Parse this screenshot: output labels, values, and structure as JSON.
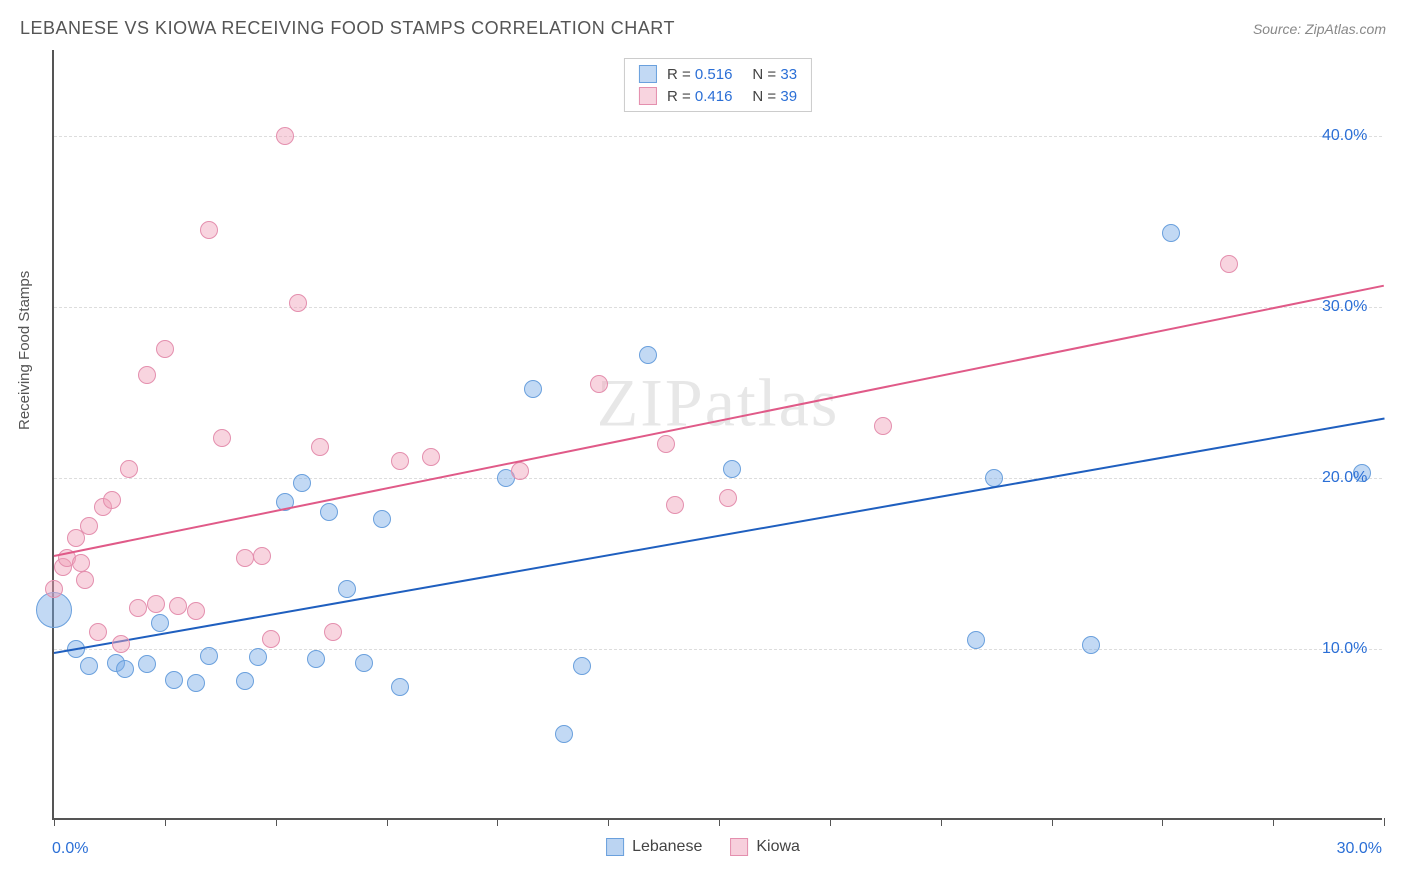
{
  "header": {
    "title": "LEBANESE VS KIOWA RECEIVING FOOD STAMPS CORRELATION CHART",
    "source": "Source: ZipAtlas.com"
  },
  "watermark": "ZIPatlas",
  "chart": {
    "type": "scatter",
    "background_color": "#ffffff",
    "grid_color": "#dddddd",
    "axis_color": "#555555",
    "ylabel": "Receiving Food Stamps",
    "ylabel_fontsize": 15,
    "ylabel_color": "#555555",
    "xlim": [
      0,
      30
    ],
    "ylim": [
      0,
      45
    ],
    "xtick_positions": [
      0,
      2.5,
      5,
      7.5,
      10,
      12.5,
      15,
      17.5,
      20,
      22.5,
      25,
      27.5,
      30
    ],
    "xtick_labels": [
      {
        "pos": 0,
        "text": "0.0%",
        "align": "left"
      },
      {
        "pos": 30,
        "text": "30.0%",
        "align": "right"
      }
    ],
    "xtick_color": "#2b6fd6",
    "yticks": [
      10,
      20,
      30,
      40
    ],
    "ytick_labels": [
      "10.0%",
      "20.0%",
      "30.0%",
      "40.0%"
    ],
    "ytick_color": "#2b6fd6",
    "series": [
      {
        "name": "Lebanese",
        "fill_color": "rgba(120,170,230,0.45)",
        "stroke_color": "#6aa0dd",
        "marker_radius": 9,
        "trend_color": "#1f5fbf",
        "trend_width": 2,
        "trend_start": {
          "x": 0,
          "y": 9.8
        },
        "trend_end": {
          "x": 30,
          "y": 23.5
        },
        "R": "0.516",
        "N": "33",
        "points": [
          {
            "x": 0.0,
            "y": 12.3,
            "r": 18
          },
          {
            "x": 0.5,
            "y": 10.0
          },
          {
            "x": 0.8,
            "y": 9.0
          },
          {
            "x": 1.4,
            "y": 9.2
          },
          {
            "x": 1.6,
            "y": 8.8
          },
          {
            "x": 2.1,
            "y": 9.1
          },
          {
            "x": 2.4,
            "y": 11.5
          },
          {
            "x": 2.7,
            "y": 8.2
          },
          {
            "x": 3.2,
            "y": 8.0
          },
          {
            "x": 3.5,
            "y": 9.6
          },
          {
            "x": 4.3,
            "y": 8.1
          },
          {
            "x": 4.6,
            "y": 9.5
          },
          {
            "x": 5.2,
            "y": 18.6
          },
          {
            "x": 5.6,
            "y": 19.7
          },
          {
            "x": 5.9,
            "y": 9.4
          },
          {
            "x": 6.2,
            "y": 18.0
          },
          {
            "x": 6.6,
            "y": 13.5
          },
          {
            "x": 7.0,
            "y": 9.2
          },
          {
            "x": 7.4,
            "y": 17.6
          },
          {
            "x": 7.8,
            "y": 7.8
          },
          {
            "x": 10.2,
            "y": 20.0
          },
          {
            "x": 10.8,
            "y": 25.2
          },
          {
            "x": 11.5,
            "y": 5.0
          },
          {
            "x": 11.9,
            "y": 9.0
          },
          {
            "x": 13.4,
            "y": 27.2
          },
          {
            "x": 15.3,
            "y": 20.5
          },
          {
            "x": 20.8,
            "y": 10.5
          },
          {
            "x": 21.2,
            "y": 20.0
          },
          {
            "x": 23.4,
            "y": 10.2
          },
          {
            "x": 25.2,
            "y": 34.3
          },
          {
            "x": 29.5,
            "y": 20.3
          }
        ]
      },
      {
        "name": "Kiowa",
        "fill_color": "rgba(240,160,185,0.45)",
        "stroke_color": "#e48fae",
        "marker_radius": 9,
        "trend_color": "#e05a88",
        "trend_width": 2,
        "trend_start": {
          "x": 0,
          "y": 15.5
        },
        "trend_end": {
          "x": 30,
          "y": 31.3
        },
        "R": "0.416",
        "N": "39",
        "points": [
          {
            "x": 0.0,
            "y": 13.5
          },
          {
            "x": 0.2,
            "y": 14.8
          },
          {
            "x": 0.3,
            "y": 15.3
          },
          {
            "x": 0.5,
            "y": 16.5
          },
          {
            "x": 0.6,
            "y": 15.0
          },
          {
            "x": 0.7,
            "y": 14.0
          },
          {
            "x": 0.8,
            "y": 17.2
          },
          {
            "x": 1.0,
            "y": 11.0
          },
          {
            "x": 1.1,
            "y": 18.3
          },
          {
            "x": 1.3,
            "y": 18.7
          },
          {
            "x": 1.5,
            "y": 10.3
          },
          {
            "x": 1.7,
            "y": 20.5
          },
          {
            "x": 1.9,
            "y": 12.4
          },
          {
            "x": 2.1,
            "y": 26.0
          },
          {
            "x": 2.3,
            "y": 12.6
          },
          {
            "x": 2.5,
            "y": 27.5
          },
          {
            "x": 2.8,
            "y": 12.5
          },
          {
            "x": 3.2,
            "y": 12.2
          },
          {
            "x": 3.5,
            "y": 34.5
          },
          {
            "x": 3.8,
            "y": 22.3
          },
          {
            "x": 4.3,
            "y": 15.3
          },
          {
            "x": 4.7,
            "y": 15.4
          },
          {
            "x": 4.9,
            "y": 10.6
          },
          {
            "x": 5.2,
            "y": 40.0
          },
          {
            "x": 5.5,
            "y": 30.2
          },
          {
            "x": 6.0,
            "y": 21.8
          },
          {
            "x": 6.3,
            "y": 11.0
          },
          {
            "x": 7.8,
            "y": 21.0
          },
          {
            "x": 8.5,
            "y": 21.2
          },
          {
            "x": 10.5,
            "y": 20.4
          },
          {
            "x": 12.3,
            "y": 25.5
          },
          {
            "x": 13.8,
            "y": 22.0
          },
          {
            "x": 14.0,
            "y": 18.4
          },
          {
            "x": 15.2,
            "y": 18.8
          },
          {
            "x": 18.7,
            "y": 23.0
          },
          {
            "x": 26.5,
            "y": 32.5
          }
        ]
      }
    ],
    "bottom_legend": [
      {
        "label": "Lebanese",
        "fill": "rgba(120,170,230,0.5)",
        "stroke": "#6aa0dd"
      },
      {
        "label": "Kiowa",
        "fill": "rgba(240,160,185,0.5)",
        "stroke": "#e48fae"
      }
    ]
  }
}
